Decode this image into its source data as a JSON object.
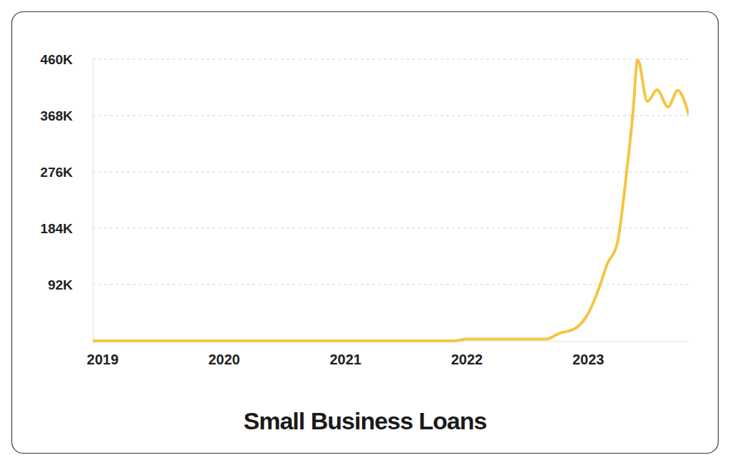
{
  "chart_data": {
    "type": "line",
    "title": "Small Business Loans",
    "x": [
      2018.92,
      2019.5,
      2020.0,
      2020.5,
      2021.0,
      2021.5,
      2021.9,
      2022.0,
      2022.66,
      2022.76,
      2022.9,
      2023.0,
      2023.1,
      2023.16,
      2023.24,
      2023.32,
      2023.37,
      2023.41,
      2023.49,
      2023.57,
      2023.66,
      2023.74,
      2023.83
    ],
    "values": [
      0,
      0,
      0,
      0,
      0,
      0,
      0,
      3000,
      3000,
      12000,
      21000,
      44000,
      91000,
      126000,
      158000,
      277000,
      370000,
      459000,
      391000,
      410000,
      382000,
      409000,
      370000
    ],
    "color": "#f4c542",
    "xlim": [
      2018.92,
      2023.83
    ],
    "xticks": [
      2019,
      2020,
      2021,
      2022,
      2023
    ],
    "ylim": [
      0,
      460000
    ],
    "yticks": [
      {
        "value": 92000,
        "label": "92K"
      },
      {
        "value": 184000,
        "label": "184K"
      },
      {
        "value": 276000,
        "label": "276K"
      },
      {
        "value": 368000,
        "label": "368K"
      },
      {
        "value": 460000,
        "label": "460K"
      }
    ],
    "grid": true
  }
}
